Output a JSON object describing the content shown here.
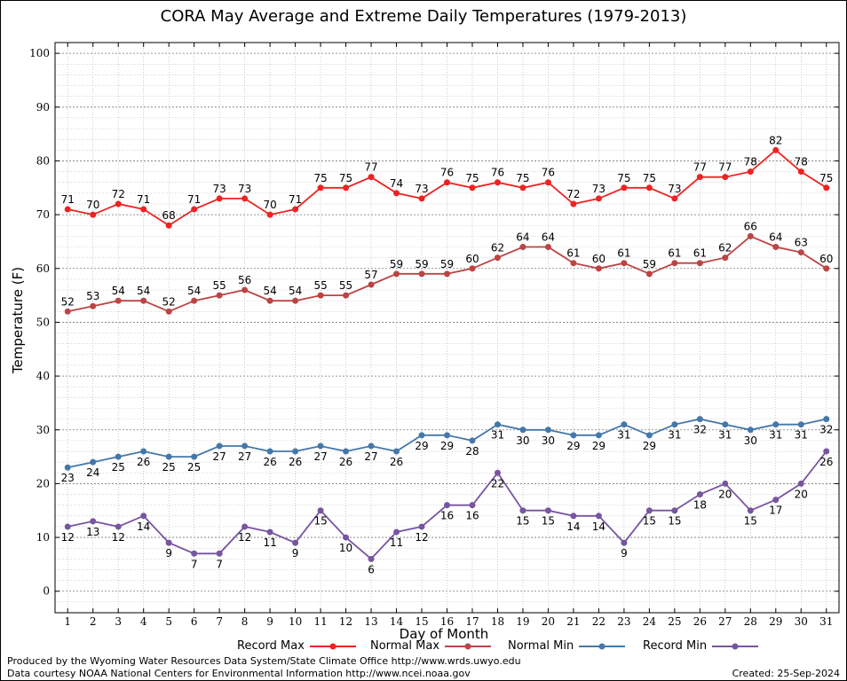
{
  "title": "CORA May Average and Extreme Daily Temperatures (1979-2013)",
  "footer": {
    "produced_by": "Produced by the Wyoming Water Resources Data System/State Climate Office http://www.wrds.uwyo.edu",
    "data_courtesy": "Data courtesy NOAA National Centers for Environmental Information http://www.ncei.noaa.gov",
    "created": "Created:  25-Sep-2024"
  },
  "colors": {
    "record_max": "#ee2222",
    "normal_max": "#bb4444",
    "normal_min": "#4477aa",
    "record_min": "#7755a0"
  },
  "chart_data": {
    "type": "line",
    "title": "CORA May Average and Extreme Daily Temperatures (1979-2013)",
    "xlabel": "Day of Month",
    "ylabel": "Temperature (F)",
    "ylim": [
      -4,
      102
    ],
    "yticks": [
      0,
      10,
      20,
      30,
      40,
      50,
      60,
      70,
      80,
      90,
      100
    ],
    "x": [
      1,
      2,
      3,
      4,
      5,
      6,
      7,
      8,
      9,
      10,
      11,
      12,
      13,
      14,
      15,
      16,
      17,
      18,
      19,
      20,
      21,
      22,
      23,
      24,
      25,
      26,
      27,
      28,
      29,
      30,
      31
    ],
    "grid": true,
    "legend_position": "bottom",
    "series": [
      {
        "name": "Record Max",
        "color": "#ee2222",
        "label_position": "above",
        "values": [
          71,
          70,
          72,
          71,
          68,
          71,
          73,
          73,
          70,
          71,
          75,
          75,
          77,
          74,
          73,
          76,
          75,
          76,
          75,
          76,
          72,
          73,
          75,
          75,
          73,
          77,
          77,
          78,
          82,
          78,
          75
        ]
      },
      {
        "name": "Normal Max",
        "color": "#bb4444",
        "label_position": "above",
        "values": [
          52,
          53,
          54,
          54,
          52,
          54,
          55,
          56,
          54,
          54,
          55,
          55,
          57,
          59,
          59,
          59,
          60,
          62,
          64,
          64,
          61,
          60,
          61,
          59,
          61,
          61,
          62,
          66,
          64,
          63,
          60
        ]
      },
      {
        "name": "Normal Min",
        "color": "#4477aa",
        "label_position": "below",
        "values": [
          23,
          24,
          25,
          26,
          25,
          25,
          27,
          27,
          26,
          26,
          27,
          26,
          27,
          26,
          29,
          29,
          28,
          31,
          30,
          30,
          29,
          29,
          31,
          29,
          31,
          32,
          31,
          30,
          31,
          31,
          32
        ]
      },
      {
        "name": "Record Min",
        "color": "#7755a0",
        "label_position": "below",
        "values": [
          12,
          13,
          12,
          14,
          9,
          7,
          7,
          12,
          11,
          9,
          15,
          10,
          6,
          11,
          12,
          16,
          16,
          22,
          15,
          15,
          14,
          14,
          9,
          15,
          15,
          18,
          20,
          15,
          17,
          20,
          26
        ]
      }
    ]
  }
}
